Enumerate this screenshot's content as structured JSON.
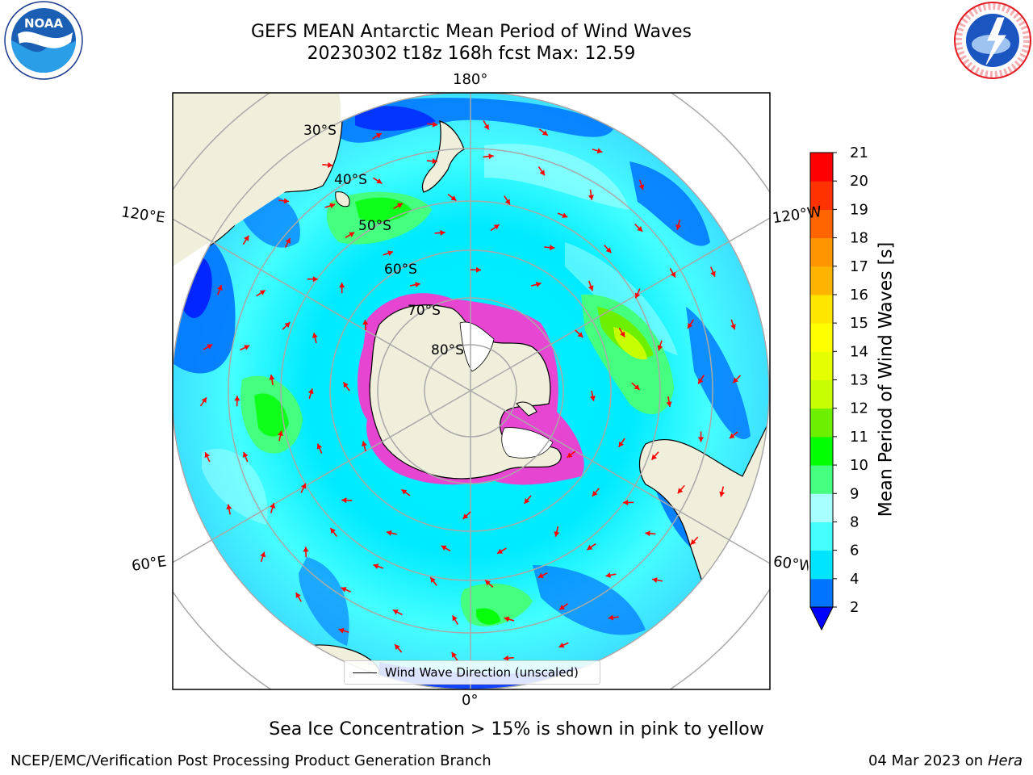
{
  "title": {
    "line1": "GEFS MEAN Antarctic Mean Period of Wind Waves",
    "line2": "20230302 t18z 168h fcst   Max: 12.59"
  },
  "map": {
    "projection": "south-polar-stereographic",
    "longitude_labels": {
      "top": "180°",
      "bottom": "0°",
      "upper_left": "120°E",
      "lower_left": "60°E",
      "upper_right": "120°W",
      "lower_right": "60°W"
    },
    "latitude_labels": [
      "30°S",
      "40°S",
      "50°S",
      "60°S",
      "70°S",
      "80°S"
    ],
    "land_color": "#efefdc",
    "legend_label": "Wind Wave Direction (unscaled)",
    "arrow_color": "#ff0000"
  },
  "colorbar": {
    "label": "Mean Period of Wind Waves [s]",
    "ticks": [
      "2",
      "4",
      "6",
      "8",
      "9",
      "10",
      "11",
      "12",
      "13",
      "14",
      "15",
      "16",
      "17",
      "18",
      "19",
      "20",
      "21"
    ],
    "colors": [
      "#0073ff",
      "#00e5ff",
      "#45ffff",
      "#a8ffff",
      "#45ff7f",
      "#00ff00",
      "#6cf000",
      "#c8ff00",
      "#e5ff00",
      "#ffff00",
      "#ffe600",
      "#ffb400",
      "#ff9600",
      "#ff6400",
      "#ff3200",
      "#ff0000"
    ],
    "under_color": "#0000ff"
  },
  "footer": {
    "ice_note": "Sea Ice Concentration > 15% is shown in pink to yellow",
    "credit": "NCEP/EMC/Verification Post Processing Product Generation Branch",
    "date": "04 Mar 2023 on",
    "machine": "Hera"
  },
  "logos": {
    "left": "NOAA",
    "right": "NATIONAL WEATHER SERVICE"
  }
}
